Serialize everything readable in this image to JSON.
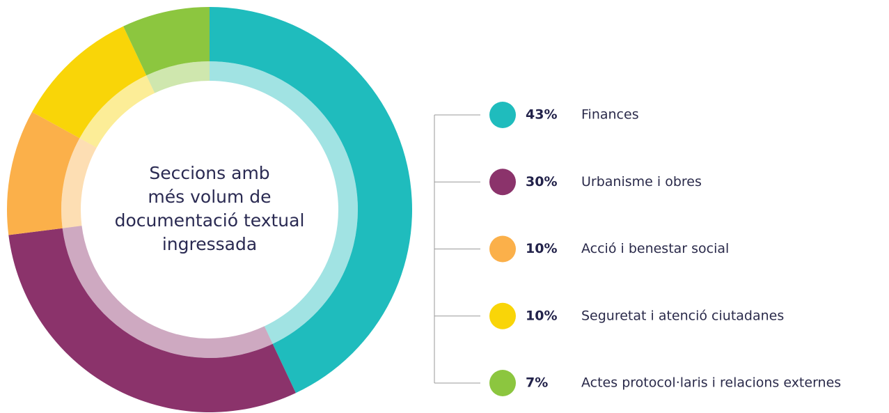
{
  "chart_data": {
    "type": "donut",
    "title": [
      "Seccions amb",
      "més volum de",
      "documentació textual",
      "ingressada"
    ],
    "categories": [
      "Finances",
      "Urbanisme i obres",
      "Acció i benestar social",
      "Seguretat i atenció ciutadanes",
      "Actes protocol·laris i relacions externes"
    ],
    "values": [
      43,
      30,
      10,
      10,
      7
    ],
    "value_labels": [
      "43%",
      "30%",
      "10%",
      "10%",
      "7%"
    ],
    "colors": [
      "#1fbcbd",
      "#8b336b",
      "#fbb04a",
      "#f9d508",
      "#8cc63f"
    ]
  }
}
